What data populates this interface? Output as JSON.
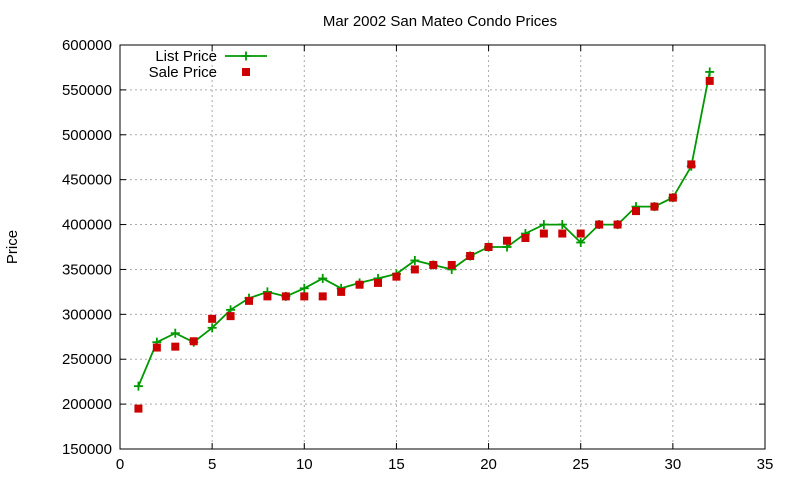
{
  "chart_data": {
    "type": "line",
    "title": "Mar 2002 San Mateo Condo Prices",
    "xlabel": "",
    "ylabel": "Price",
    "xlim": [
      0,
      35
    ],
    "ylim": [
      150000,
      600000
    ],
    "xticks": [
      0,
      5,
      10,
      15,
      20,
      25,
      30,
      35
    ],
    "yticks": [
      150000,
      200000,
      250000,
      300000,
      350000,
      400000,
      450000,
      500000,
      550000,
      600000
    ],
    "grid": true,
    "legend_position": "top-left",
    "series": [
      {
        "name": "List Price",
        "style": "line-with-plus-markers",
        "color": "#009900",
        "x": [
          1,
          2,
          3,
          4,
          5,
          6,
          7,
          8,
          9,
          10,
          11,
          12,
          13,
          14,
          15,
          16,
          17,
          18,
          19,
          20,
          21,
          22,
          23,
          24,
          25,
          26,
          27,
          28,
          29,
          30,
          31,
          32
        ],
        "values": [
          220000,
          269000,
          279000,
          269000,
          285000,
          305000,
          318000,
          325000,
          320000,
          329000,
          340000,
          329000,
          335000,
          340000,
          345000,
          360000,
          355000,
          350000,
          365000,
          375000,
          375000,
          390000,
          400000,
          400000,
          380000,
          400000,
          400000,
          420000,
          420000,
          430000,
          465000,
          570000
        ]
      },
      {
        "name": "Sale Price",
        "style": "square-markers",
        "color": "#cc0000",
        "x": [
          1,
          2,
          3,
          4,
          5,
          6,
          7,
          8,
          9,
          10,
          11,
          12,
          13,
          14,
          15,
          16,
          17,
          18,
          19,
          20,
          21,
          22,
          23,
          24,
          25,
          26,
          27,
          28,
          29,
          30,
          31,
          32
        ],
        "values": [
          195000,
          263000,
          264000,
          270000,
          295000,
          298000,
          315000,
          320000,
          320000,
          320000,
          320000,
          325000,
          333000,
          335000,
          342000,
          350000,
          355000,
          355000,
          365000,
          375000,
          382000,
          385000,
          390000,
          390000,
          390000,
          400000,
          400000,
          415000,
          420000,
          430000,
          467000,
          560000
        ]
      }
    ]
  }
}
